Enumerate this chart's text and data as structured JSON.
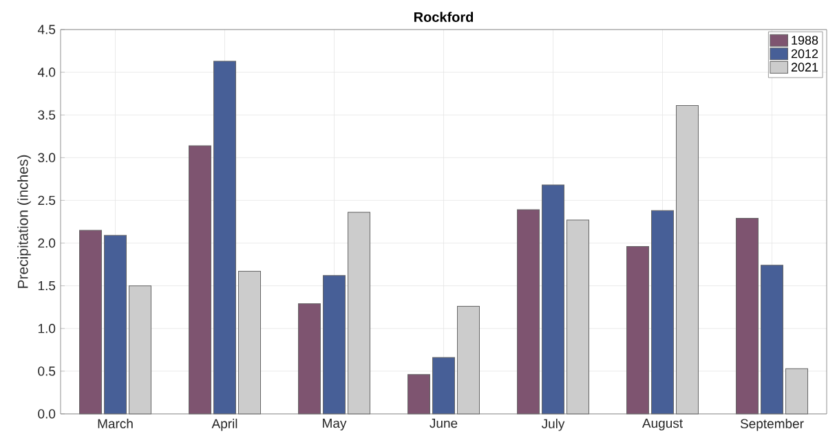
{
  "chart_data": {
    "type": "bar",
    "title": "Rockford",
    "ylabel": "Precipitation (inches)",
    "categories": [
      "March",
      "April",
      "May",
      "June",
      "July",
      "August",
      "September"
    ],
    "series": [
      {
        "name": "1988",
        "color": "#7e5470",
        "values": [
          2.15,
          3.14,
          1.29,
          0.46,
          2.39,
          1.96,
          2.29
        ]
      },
      {
        "name": "2012",
        "color": "#475f97",
        "values": [
          2.09,
          4.13,
          1.62,
          0.66,
          2.68,
          2.38,
          1.74
        ]
      },
      {
        "name": "2021",
        "color": "#cccccc",
        "values": [
          1.5,
          1.67,
          2.36,
          1.26,
          2.27,
          3.61,
          0.53
        ]
      }
    ],
    "ylim": [
      0,
      4.5
    ],
    "yticks": [
      {
        "value": 0,
        "label": "0.0"
      },
      {
        "value": 0.5,
        "label": "0.5"
      },
      {
        "value": 1,
        "label": "1.0"
      },
      {
        "value": 1.5,
        "label": "1.5"
      },
      {
        "value": 2,
        "label": "2.0"
      },
      {
        "value": 2.5,
        "label": "2.5"
      },
      {
        "value": 3,
        "label": "3.0"
      },
      {
        "value": 3.5,
        "label": "3.5"
      },
      {
        "value": 4,
        "label": "4.0"
      },
      {
        "value": 4.5,
        "label": "4.5"
      }
    ],
    "grid": true,
    "legend": "top right"
  }
}
